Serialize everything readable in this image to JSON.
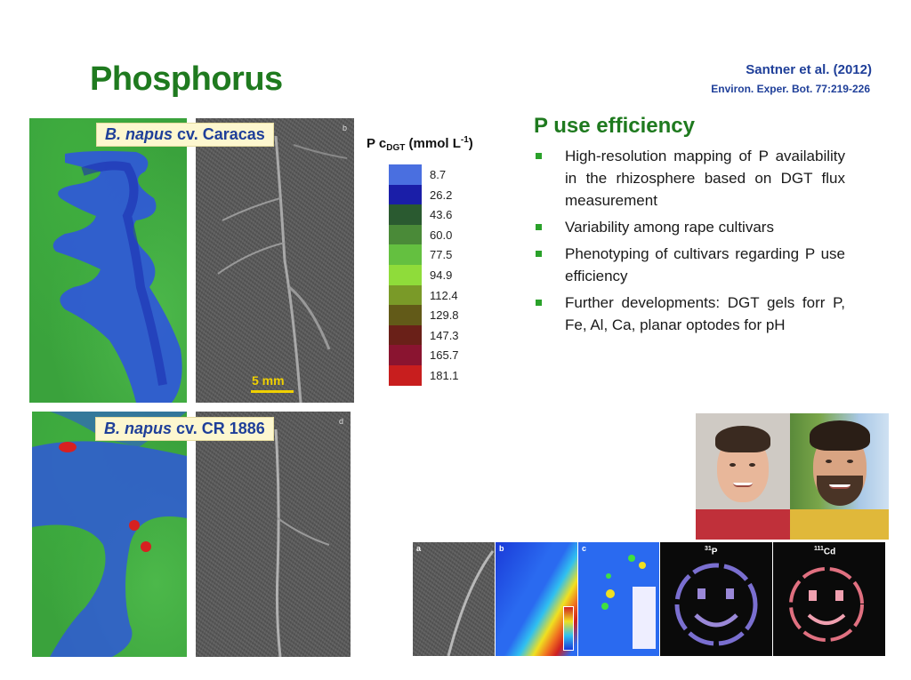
{
  "slide": {
    "title": "Phosphorus",
    "citation": {
      "authors": "Santner et al.  (2012)",
      "journal": "Environ. Exper. Bot. 77:219-226"
    }
  },
  "images": {
    "top_label_species": "B. napus",
    "top_label_cultivar": " cv. Caracas",
    "bottom_label_species": "B. napus",
    "bottom_label_cultivar": " cv. CR 1886",
    "scale_bar": "5 mm",
    "panel_letters": [
      "b",
      "d"
    ]
  },
  "legend": {
    "title_main": "P c",
    "title_sub": "DGT",
    "title_unit": " (mmol L",
    "title_exp": "-1",
    "title_close": ")",
    "entries": [
      {
        "value": "8.7",
        "color": "#4a6fe0"
      },
      {
        "value": "26.2",
        "color": "#1a1ea8"
      },
      {
        "value": "43.6",
        "color": "#2a5a30"
      },
      {
        "value": "60.0",
        "color": "#4a8a38"
      },
      {
        "value": "77.5",
        "color": "#64c040"
      },
      {
        "value": "94.9",
        "color": "#8fdc3a"
      },
      {
        "value": "112.4",
        "color": "#7a9a28"
      },
      {
        "value": "129.8",
        "color": "#625a18"
      },
      {
        "value": "147.3",
        "color": "#6a2018"
      },
      {
        "value": "165.7",
        "color": "#8a1430"
      },
      {
        "value": "181.1",
        "color": "#c81e1e"
      }
    ]
  },
  "content": {
    "heading": "P use efficiency",
    "bullets": [
      "High-resolution mapping of P availability in the rhizosphere based on DGT flux measurement",
      "Variability among rape cultivars",
      "Phenotyping of cultivars regarding P use efficiency",
      "Further developments: DGT gels forr P, Fe, Al, Ca, planar optodes for pH"
    ]
  },
  "strip": {
    "panel_letters": [
      "a",
      "b",
      "c"
    ],
    "isotope1_mass": "31",
    "isotope1_elem": "P",
    "isotope2_mass": "111",
    "isotope2_elem": "Cd"
  },
  "colors": {
    "title_green": "#1f7a1f",
    "citation_blue": "#1f3f99",
    "bullet_green": "#2aa12a"
  }
}
